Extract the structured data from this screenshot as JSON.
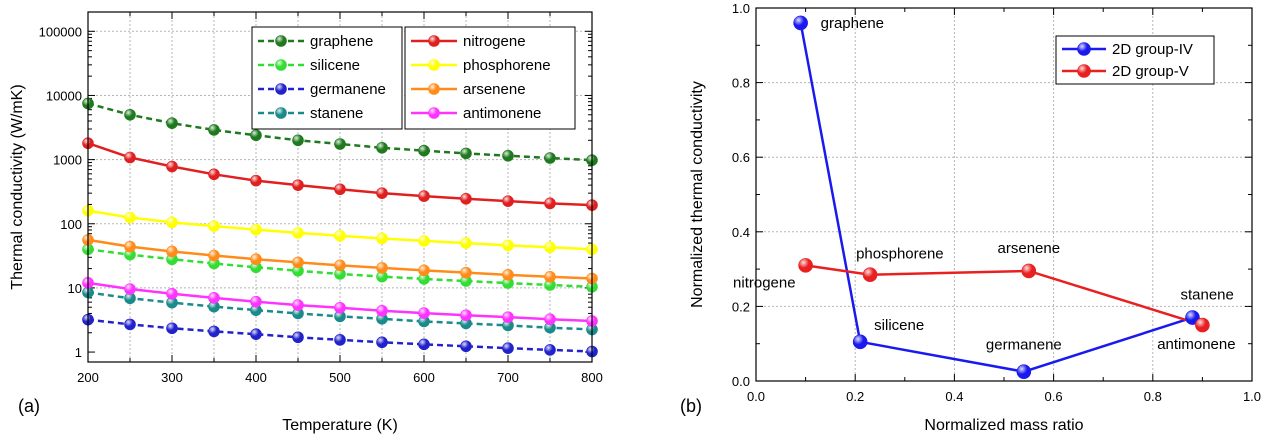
{
  "chart_data": [
    {
      "panel_label": "(a)",
      "type": "line",
      "xlabel": "Temperature (K)",
      "ylabel": "Thermal conductivity (W/mK)",
      "xlim": [
        200,
        800
      ],
      "ylim": [
        0.7,
        200000
      ],
      "yscale": "log",
      "grid": true,
      "legend_position": "top-right",
      "x_ticks": [
        200,
        300,
        400,
        500,
        600,
        700,
        800
      ],
      "x_tick_labels": [
        "200",
        "300",
        "400",
        "500",
        "600",
        "700",
        "800"
      ],
      "y_ticks": [
        1,
        10,
        100,
        1000,
        10000,
        100000
      ],
      "y_tick_labels": [
        "1",
        "10",
        "100",
        "1000",
        "10000",
        "100000"
      ],
      "x": [
        200,
        250,
        300,
        350,
        400,
        450,
        500,
        550,
        600,
        650,
        700,
        750,
        800
      ],
      "series": [
        {
          "name": "graphene",
          "color": "#1f7a1f",
          "dashed": true,
          "values": [
            7500,
            5000,
            3700,
            2900,
            2400,
            2000,
            1750,
            1530,
            1380,
            1250,
            1150,
            1060,
            980
          ]
        },
        {
          "name": "silicene",
          "color": "#33dd33",
          "dashed": true,
          "values": [
            40,
            33,
            28,
            24,
            21,
            18.5,
            16.5,
            15,
            13.8,
            12.8,
            11.9,
            11.1,
            10.4
          ]
        },
        {
          "name": "germanene",
          "color": "#2222cc",
          "dashed": true,
          "values": [
            3.2,
            2.7,
            2.35,
            2.1,
            1.9,
            1.7,
            1.55,
            1.42,
            1.32,
            1.23,
            1.15,
            1.08,
            1.02
          ]
        },
        {
          "name": "stanene",
          "color": "#1a8a8a",
          "dashed": true,
          "values": [
            8.5,
            6.9,
            5.9,
            5.1,
            4.5,
            4.0,
            3.6,
            3.3,
            3.0,
            2.8,
            2.6,
            2.4,
            2.25
          ]
        },
        {
          "name": "nitrogene",
          "color": "#e02020",
          "dashed": false,
          "values": [
            1800,
            1080,
            780,
            590,
            470,
            400,
            345,
            300,
            270,
            245,
            225,
            208,
            195
          ]
        },
        {
          "name": "phosphorene",
          "color": "#ffff00",
          "dashed": false,
          "values": [
            160,
            125,
            105,
            92,
            81,
            72,
            65,
            59,
            54,
            50,
            46,
            43,
            40
          ]
        },
        {
          "name": "arsenene",
          "color": "#ff8c1a",
          "dashed": false,
          "values": [
            56,
            44,
            37,
            32,
            28,
            25,
            22.5,
            20.5,
            18.8,
            17.3,
            16,
            14.9,
            14
          ]
        },
        {
          "name": "antimonene",
          "color": "#ff33ff",
          "dashed": false,
          "values": [
            12,
            9.6,
            8.1,
            7.0,
            6.1,
            5.4,
            4.9,
            4.4,
            4.05,
            3.75,
            3.5,
            3.25,
            3.05
          ]
        }
      ]
    },
    {
      "panel_label": "(b)",
      "type": "scatter",
      "xlabel": "Normalized mass ratio",
      "ylabel": "Normalized thermal conductivity",
      "xlim": [
        0.0,
        1.0
      ],
      "ylim": [
        0.0,
        1.0
      ],
      "grid": true,
      "legend_position": "top-right",
      "x_ticks": [
        0.0,
        0.2,
        0.4,
        0.6,
        0.8,
        1.0
      ],
      "x_tick_labels": [
        "0.0",
        "0.2",
        "0.4",
        "0.6",
        "0.8",
        "1.0"
      ],
      "y_ticks": [
        0.0,
        0.2,
        0.4,
        0.6,
        0.8,
        1.0
      ],
      "y_tick_labels": [
        "0.0",
        "0.2",
        "0.4",
        "0.6",
        "0.8",
        "1.0"
      ],
      "series": [
        {
          "name": "2D group-IV",
          "color": "#1a1aee",
          "points": [
            {
              "label": "graphene",
              "x": 0.09,
              "y": 0.96
            },
            {
              "label": "silicene",
              "x": 0.21,
              "y": 0.105
            },
            {
              "label": "germanene",
              "x": 0.54,
              "y": 0.025
            },
            {
              "label": "stanene",
              "x": 0.88,
              "y": 0.17
            }
          ]
        },
        {
          "name": "2D group-V",
          "color": "#e82020",
          "points": [
            {
              "label": "nitrogene",
              "x": 0.1,
              "y": 0.31
            },
            {
              "label": "phosphorene",
              "x": 0.23,
              "y": 0.285
            },
            {
              "label": "arsenene",
              "x": 0.55,
              "y": 0.295
            },
            {
              "label": "antimonene",
              "x": 0.9,
              "y": 0.15
            }
          ]
        }
      ]
    }
  ]
}
